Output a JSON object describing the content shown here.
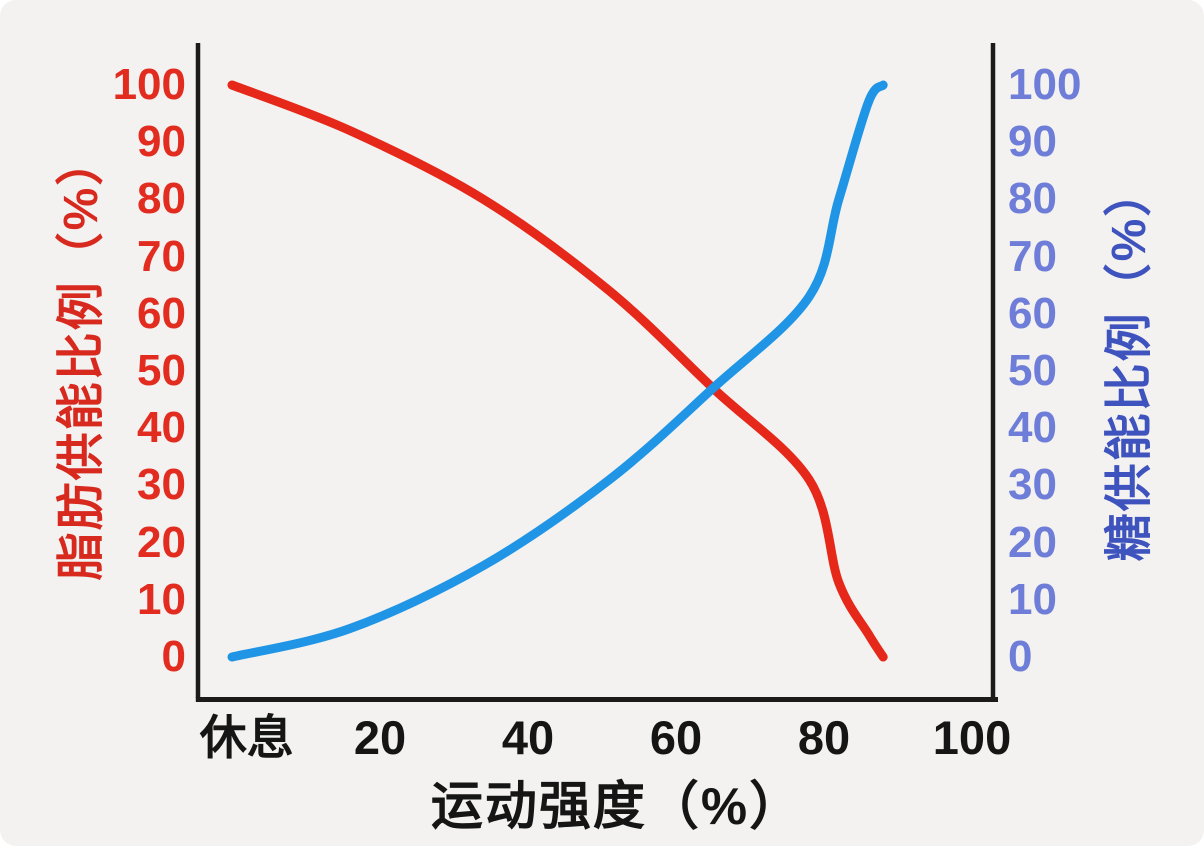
{
  "window": {
    "background": "#f3f2f0"
  },
  "colors": {
    "axis": "#1b1b1b",
    "fat_curve": "#e6281a",
    "sugar_curve": "#2095e6",
    "left_tick_text": "#e22c1f",
    "right_tick_text": "#6e7dd8",
    "left_title_text": "#d8291f",
    "right_title_text": "#3e53bd",
    "x_text": "#151515"
  },
  "chart_data": {
    "type": "line",
    "title": "",
    "xlabel": "运动强度（%）",
    "ylabel_left": "脂肪供能比例（%）",
    "ylabel_right": "糖供能比例（%）",
    "x": [
      0,
      16,
      34,
      51,
      65,
      78,
      82,
      86,
      88
    ],
    "series": [
      {
        "key": "fat",
        "name": "脂肪供能比例",
        "axis": "left",
        "color": "#e6281a",
        "values": [
          100,
          92,
          80,
          64,
          47,
          31,
          13,
          4,
          0
        ]
      },
      {
        "key": "sugar",
        "name": "糖供能比例",
        "axis": "right",
        "color": "#2095e6",
        "values": [
          0,
          5,
          16,
          31,
          47,
          63,
          80,
          97,
          100
        ]
      }
    ],
    "xlim": [
      -5,
      103
    ],
    "ylim": [
      0,
      100
    ],
    "x_ticks": [
      {
        "label": "休息",
        "value": 2
      },
      {
        "label": "20",
        "value": 20
      },
      {
        "label": "40",
        "value": 40
      },
      {
        "label": "60",
        "value": 60
      },
      {
        "label": "80",
        "value": 80
      },
      {
        "label": "100",
        "value": 100
      }
    ],
    "y_ticks": [
      100,
      90,
      80,
      70,
      60,
      50,
      40,
      30,
      20,
      10,
      0
    ],
    "grid": false,
    "legend": "none"
  }
}
